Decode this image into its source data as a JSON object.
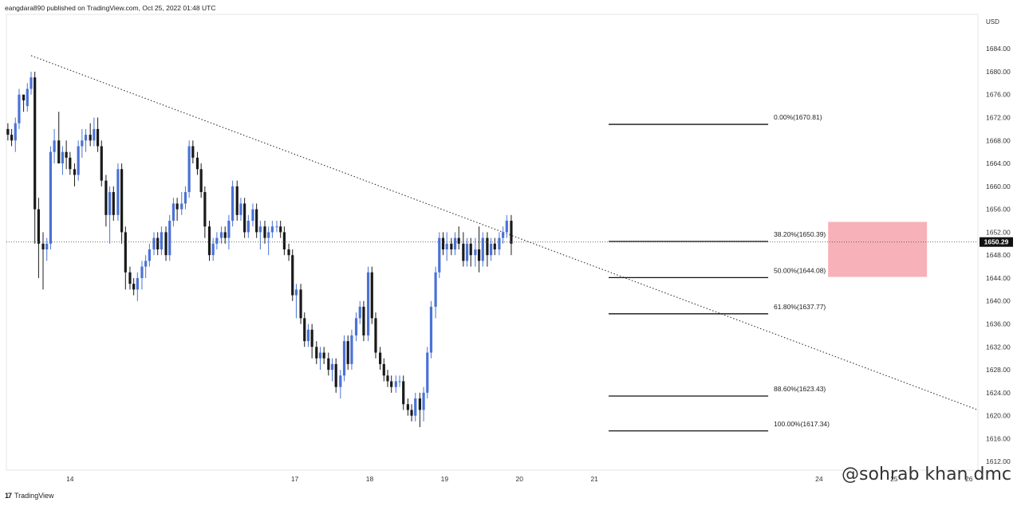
{
  "header": {
    "published": "eangdara890 published on TradingView.com, Oct 25, 2022 01:48 UTC"
  },
  "footer": {
    "brand": "TradingView",
    "logo": "17"
  },
  "watermark": "@sohrab khan dmc",
  "chart_data": {
    "type": "candlestick",
    "currency": "USD",
    "ylim": [
      1610.5,
      1690
    ],
    "yticks": [
      1612,
      1616,
      1620,
      1624,
      1628,
      1632,
      1636,
      1640,
      1644,
      1648,
      1652,
      1656,
      1660,
      1664,
      1668,
      1672,
      1676,
      1680,
      1684
    ],
    "ytick_labels": [
      "1612.00",
      "1616.00",
      "1620.00",
      "1624.00",
      "1628.00",
      "1632.00",
      "1636.00",
      "1640.00",
      "1644.00",
      "1648.00",
      "1652.00",
      "1656.00",
      "1660.00",
      "1664.00",
      "1668.00",
      "1672.00",
      "1676.00",
      "1680.00",
      "1684.00"
    ],
    "xlim": [
      13.15,
      26.12
    ],
    "xticks": [
      14,
      17,
      18,
      19,
      20,
      21,
      24,
      25,
      26
    ],
    "xtick_labels": [
      "14",
      "17",
      "18",
      "19",
      "20",
      "21",
      "24",
      "25",
      "26"
    ],
    "last_price": 1650.29,
    "last_price_label": "1650.29",
    "up_color": "#4a72d6",
    "down_color": "#1a1a1a",
    "fibonacci": {
      "x_start": 21.19,
      "x_end": 23.32,
      "levels": [
        {
          "label": "0.00%(1670.81)",
          "value": 1670.81
        },
        {
          "label": "38.20%(1650.39)",
          "value": 1650.39
        },
        {
          "label": "50.00%(1644.08)",
          "value": 1644.08
        },
        {
          "label": "61.80%(1637.77)",
          "value": 1637.77
        },
        {
          "label": "88.60%(1623.43)",
          "value": 1623.43
        },
        {
          "label": "100.00%(1617.34)",
          "value": 1617.34
        }
      ]
    },
    "trendline": {
      "x1": 13.48,
      "y1": 1682.8,
      "x2": 26.12,
      "y2": 1621.0,
      "style": "dotted"
    },
    "zone": {
      "x1": 24.12,
      "x2": 25.44,
      "y1": 1644.2,
      "y2": 1653.8,
      "color": "#f4a4ac"
    },
    "candles": [
      [
        13.17,
        1670,
        1671,
        1668,
        1669
      ],
      [
        13.22,
        1669,
        1670,
        1667,
        1668
      ],
      [
        13.27,
        1668,
        1672,
        1666,
        1671
      ],
      [
        13.32,
        1671,
        1677,
        1670,
        1676
      ],
      [
        13.38,
        1676,
        1676,
        1673,
        1675
      ],
      [
        13.43,
        1674,
        1678,
        1673,
        1677
      ],
      [
        13.48,
        1677,
        1680,
        1676,
        1679
      ],
      [
        13.53,
        1679,
        1680,
        1650,
        1656
      ],
      [
        13.58,
        1656,
        1658,
        1644,
        1650
      ],
      [
        13.64,
        1650,
        1652,
        1642,
        1649
      ],
      [
        13.69,
        1649,
        1651,
        1647,
        1650
      ],
      [
        13.74,
        1650,
        1667,
        1649,
        1666
      ],
      [
        13.79,
        1666,
        1670,
        1664,
        1668
      ],
      [
        13.85,
        1668,
        1673,
        1664,
        1664
      ],
      [
        13.9,
        1664,
        1667,
        1662,
        1666
      ],
      [
        13.95,
        1666,
        1668,
        1663,
        1665
      ],
      [
        14.0,
        1665,
        1666,
        1662,
        1663
      ],
      [
        14.06,
        1663,
        1664,
        1660,
        1662
      ],
      [
        14.11,
        1662,
        1668,
        1661,
        1667
      ],
      [
        14.16,
        1667,
        1670,
        1665,
        1668
      ],
      [
        14.21,
        1668,
        1670,
        1666,
        1669
      ],
      [
        14.27,
        1669,
        1671,
        1667,
        1668
      ],
      [
        14.32,
        1668,
        1672,
        1667,
        1670
      ],
      [
        14.37,
        1670,
        1672,
        1666,
        1667
      ],
      [
        14.42,
        1667,
        1668,
        1660,
        1661
      ],
      [
        14.48,
        1661,
        1662,
        1653,
        1655
      ],
      [
        14.53,
        1655,
        1660,
        1650,
        1659
      ],
      [
        14.58,
        1659,
        1660,
        1654,
        1655
      ],
      [
        14.64,
        1655,
        1664,
        1654,
        1663
      ],
      [
        14.69,
        1663,
        1664,
        1650,
        1652
      ],
      [
        14.74,
        1652,
        1653,
        1642,
        1645
      ],
      [
        14.8,
        1645,
        1646,
        1642,
        1643
      ],
      [
        14.85,
        1643,
        1644,
        1641,
        1642
      ],
      [
        14.9,
        1642,
        1645,
        1640,
        1644
      ],
      [
        14.96,
        1644,
        1647,
        1642,
        1646
      ],
      [
        15.01,
        1646,
        1648,
        1644,
        1647
      ],
      [
        15.06,
        1647,
        1650,
        1646,
        1649
      ],
      [
        15.12,
        1649,
        1652,
        1648,
        1651
      ],
      [
        15.17,
        1651,
        1652,
        1648,
        1649
      ],
      [
        15.22,
        1649,
        1653,
        1648,
        1652
      ],
      [
        15.28,
        1652,
        1653,
        1647,
        1648
      ],
      [
        15.33,
        1648,
        1655,
        1647,
        1654
      ],
      [
        15.38,
        1654,
        1658,
        1653,
        1657
      ],
      [
        15.43,
        1657,
        1658,
        1654,
        1656
      ],
      [
        15.49,
        1656,
        1659,
        1655,
        1657
      ],
      [
        15.54,
        1657,
        1660,
        1656,
        1659
      ],
      [
        15.59,
        1659,
        1668,
        1658,
        1667
      ],
      [
        15.64,
        1667,
        1668,
        1664,
        1665
      ],
      [
        15.7,
        1665,
        1666,
        1662,
        1663
      ],
      [
        15.75,
        1663,
        1664,
        1658,
        1659
      ],
      [
        15.8,
        1659,
        1660,
        1651,
        1653
      ],
      [
        15.86,
        1653,
        1654,
        1647,
        1648
      ],
      [
        15.91,
        1648,
        1651,
        1647,
        1650
      ],
      [
        15.96,
        1650,
        1652,
        1649,
        1651
      ],
      [
        16.02,
        1651,
        1653,
        1650,
        1652
      ],
      [
        16.07,
        1652,
        1653,
        1650,
        1651
      ],
      [
        16.12,
        1651,
        1655,
        1649,
        1654
      ],
      [
        16.17,
        1654,
        1661,
        1653,
        1660
      ],
      [
        16.23,
        1660,
        1661,
        1654,
        1655
      ],
      [
        16.28,
        1655,
        1658,
        1654,
        1657
      ],
      [
        16.33,
        1657,
        1658,
        1651,
        1652
      ],
      [
        16.38,
        1652,
        1655,
        1651,
        1654
      ],
      [
        16.44,
        1654,
        1657,
        1653,
        1656
      ],
      [
        16.49,
        1656,
        1657,
        1651,
        1652
      ],
      [
        16.54,
        1652,
        1654,
        1649,
        1653
      ],
      [
        16.6,
        1653,
        1654,
        1650,
        1651
      ],
      [
        16.65,
        1651,
        1653,
        1648,
        1652
      ],
      [
        16.7,
        1652,
        1654,
        1651,
        1653
      ],
      [
        16.76,
        1653,
        1654,
        1652,
        1653
      ],
      [
        16.81,
        1653,
        1654,
        1651,
        1652
      ],
      [
        16.86,
        1652,
        1653,
        1648,
        1649
      ],
      [
        16.92,
        1649,
        1650,
        1647,
        1648
      ],
      [
        16.97,
        1648,
        1649,
        1640,
        1641
      ],
      [
        17.02,
        1641,
        1643,
        1637,
        1642
      ],
      [
        17.08,
        1642,
        1643,
        1636,
        1637
      ],
      [
        17.13,
        1637,
        1638,
        1632,
        1633
      ],
      [
        17.18,
        1633,
        1636,
        1632,
        1635
      ],
      [
        17.23,
        1635,
        1636,
        1630,
        1632
      ],
      [
        17.29,
        1632,
        1633,
        1629,
        1630
      ],
      [
        17.34,
        1630,
        1632,
        1628,
        1631
      ],
      [
        17.39,
        1631,
        1632,
        1629,
        1630
      ],
      [
        17.45,
        1630,
        1631,
        1627,
        1628
      ],
      [
        17.5,
        1628,
        1630,
        1626,
        1629
      ],
      [
        17.55,
        1629,
        1630,
        1624,
        1625
      ],
      [
        17.61,
        1625,
        1628,
        1623,
        1627
      ],
      [
        17.66,
        1627,
        1634,
        1626,
        1633
      ],
      [
        17.71,
        1633,
        1634,
        1628,
        1629
      ],
      [
        17.76,
        1629,
        1635,
        1628,
        1634
      ],
      [
        17.82,
        1634,
        1638,
        1633,
        1637
      ],
      [
        17.87,
        1637,
        1640,
        1636,
        1639
      ],
      [
        17.92,
        1639,
        1640,
        1633,
        1634
      ],
      [
        17.98,
        1634,
        1646,
        1633,
        1645
      ],
      [
        18.03,
        1645,
        1646,
        1636,
        1637
      ],
      [
        18.08,
        1637,
        1638,
        1630,
        1631
      ],
      [
        18.14,
        1631,
        1632,
        1628,
        1629
      ],
      [
        18.19,
        1629,
        1630,
        1626,
        1627
      ],
      [
        18.24,
        1627,
        1628,
        1625,
        1626
      ],
      [
        18.29,
        1626,
        1627,
        1624,
        1625
      ],
      [
        18.35,
        1625,
        1627,
        1624,
        1626
      ],
      [
        18.4,
        1626,
        1627,
        1625,
        1626
      ],
      [
        18.45,
        1626,
        1627,
        1621,
        1622
      ],
      [
        18.51,
        1622,
        1623,
        1620,
        1621
      ],
      [
        18.56,
        1621,
        1622,
        1619,
        1620
      ],
      [
        18.61,
        1620,
        1624,
        1619,
        1623
      ],
      [
        18.67,
        1623,
        1624,
        1618,
        1621
      ],
      [
        18.72,
        1621,
        1625,
        1619,
        1624
      ],
      [
        18.77,
        1624,
        1632,
        1623,
        1631
      ],
      [
        18.82,
        1631,
        1640,
        1630,
        1639
      ],
      [
        18.88,
        1639,
        1646,
        1637,
        1645
      ],
      [
        18.93,
        1645,
        1652,
        1644,
        1651
      ],
      [
        18.98,
        1651,
        1652,
        1648,
        1649
      ],
      [
        19.03,
        1649,
        1652,
        1647,
        1650
      ],
      [
        19.09,
        1650,
        1651,
        1648,
        1649
      ],
      [
        19.14,
        1649,
        1652,
        1648,
        1651
      ],
      [
        19.19,
        1651,
        1653,
        1649,
        1650
      ],
      [
        19.25,
        1650,
        1652,
        1646,
        1647
      ],
      [
        19.3,
        1647,
        1651,
        1646,
        1650
      ],
      [
        19.35,
        1650,
        1651,
        1646,
        1648
      ],
      [
        19.41,
        1648,
        1651,
        1646,
        1649
      ],
      [
        19.46,
        1649,
        1653,
        1645,
        1647
      ],
      [
        19.51,
        1647,
        1652,
        1646,
        1651
      ],
      [
        19.57,
        1651,
        1652,
        1646,
        1648
      ],
      [
        19.62,
        1648,
        1651,
        1647,
        1650
      ],
      [
        19.67,
        1650,
        1651,
        1648,
        1649
      ],
      [
        19.73,
        1649,
        1652,
        1648,
        1651
      ],
      [
        19.78,
        1651,
        1653,
        1650,
        1652
      ],
      [
        19.83,
        1652,
        1655,
        1651,
        1654
      ],
      [
        19.89,
        1654,
        1655,
        1648,
        1650
      ]
    ]
  }
}
